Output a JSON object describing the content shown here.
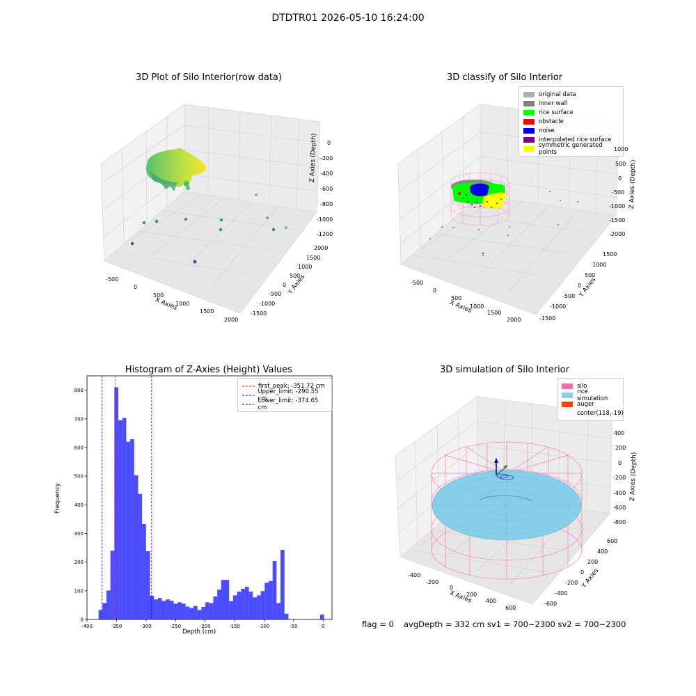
{
  "suptitle": "DTDTR01 2026-05-10 16:24:00",
  "panels": {
    "raw": {
      "title": "3D Plot of Silo Interior(row data)",
      "xlabel": "X Axies",
      "ylabel": "Y Axies",
      "zlabel": "Z Axies (Depth)",
      "xticks": [
        "-500",
        "0",
        "500",
        "1000",
        "1500",
        "2000"
      ],
      "yticks": [
        "2000",
        "1500",
        "1000",
        "500",
        "0",
        "-500",
        "-1000",
        "-1500"
      ],
      "zticks": [
        "0",
        "-200",
        "-400",
        "-600",
        "-800",
        "-1000",
        "-1200"
      ]
    },
    "classify": {
      "title": "3D classify of Silo Interior",
      "xlabel": "X Axies",
      "ylabel": "Y Axies",
      "zlabel": "Z Axies (Depth)",
      "xticks": [
        "-500",
        "0",
        "500",
        "1000",
        "1500",
        "2000"
      ],
      "yticks": [
        "1500",
        "1000",
        "500",
        "0",
        "-500",
        "-1000",
        "-1500"
      ],
      "zticks": [
        "1000",
        "500",
        "0",
        "-500",
        "-1000",
        "-1500",
        "-2000"
      ],
      "legend": [
        {
          "label": "original data",
          "color": "#b0b0b0"
        },
        {
          "label": "inner wall",
          "color": "#808080"
        },
        {
          "label": "rice surface",
          "color": "#00ff00"
        },
        {
          "label": "obstacle",
          "color": "#ff0000"
        },
        {
          "label": "noise",
          "color": "#0000ee"
        },
        {
          "label": "interpolated rice surface",
          "color": "#800080"
        },
        {
          "label": "symmetric generated points",
          "color": "#ffff00"
        }
      ]
    },
    "simulation": {
      "title": "3D simulation of Silo Interior",
      "xlabel": "X Axies",
      "ylabel": "Y Axies",
      "zlabel": "Z Axies (Depth)",
      "xticks": [
        "-400",
        "-200",
        "0",
        "200",
        "400",
        "600"
      ],
      "yticks": [
        "600",
        "400",
        "200",
        "0",
        "-200",
        "-400",
        "-600"
      ],
      "zticks": [
        "400",
        "200",
        "0",
        "-200",
        "-400",
        "-600",
        "-800"
      ],
      "legend": [
        {
          "label": "silo",
          "color": "#ff69b4"
        },
        {
          "label": "rice simulation",
          "color": "#87ceeb"
        },
        {
          "label": "auger",
          "color": "#ff4500"
        },
        {
          "label": "center(118,-19)",
          "color": ""
        }
      ]
    }
  },
  "footer": {
    "flag": "flag = 0",
    "avg": "avgDepth = 332 cm  sv1 = 700~2300  sv2 = 700~2300"
  },
  "chart_data": {
    "type": "bar",
    "title": "Histogram of Z-Axies (Height) Values",
    "xlabel": "Depth (cm)",
    "ylabel": "Frequency",
    "xlim": [
      -400,
      15
    ],
    "ylim": [
      0,
      850
    ],
    "xticks": [
      -400,
      -350,
      -300,
      -250,
      -200,
      -150,
      -100,
      -50,
      0
    ],
    "yticks": [
      0,
      100,
      200,
      300,
      400,
      500,
      600,
      700,
      800
    ],
    "bin_width": 6.7,
    "bins": [
      {
        "x": -380.4,
        "y": 33
      },
      {
        "x": -373.7,
        "y": 57
      },
      {
        "x": -367.0,
        "y": 101
      },
      {
        "x": -360.3,
        "y": 240
      },
      {
        "x": -353.6,
        "y": 810
      },
      {
        "x": -346.9,
        "y": 695
      },
      {
        "x": -340.2,
        "y": 703
      },
      {
        "x": -333.5,
        "y": 620
      },
      {
        "x": -326.8,
        "y": 629
      },
      {
        "x": -320.1,
        "y": 503
      },
      {
        "x": -313.4,
        "y": 438
      },
      {
        "x": -306.7,
        "y": 333
      },
      {
        "x": -300.0,
        "y": 238
      },
      {
        "x": -293.3,
        "y": 83
      },
      {
        "x": -286.6,
        "y": 70
      },
      {
        "x": -279.9,
        "y": 75
      },
      {
        "x": -273.2,
        "y": 65
      },
      {
        "x": -266.5,
        "y": 70
      },
      {
        "x": -259.8,
        "y": 65
      },
      {
        "x": -253.1,
        "y": 55
      },
      {
        "x": -246.4,
        "y": 60
      },
      {
        "x": -239.7,
        "y": 55
      },
      {
        "x": -233.0,
        "y": 45
      },
      {
        "x": -226.3,
        "y": 40
      },
      {
        "x": -219.6,
        "y": 47
      },
      {
        "x": -212.9,
        "y": 33
      },
      {
        "x": -206.2,
        "y": 44
      },
      {
        "x": -199.5,
        "y": 60
      },
      {
        "x": -192.8,
        "y": 57
      },
      {
        "x": -186.1,
        "y": 80
      },
      {
        "x": -179.4,
        "y": 104
      },
      {
        "x": -172.7,
        "y": 138
      },
      {
        "x": -166.0,
        "y": 138
      },
      {
        "x": -159.3,
        "y": 64
      },
      {
        "x": -152.6,
        "y": 84
      },
      {
        "x": -145.9,
        "y": 97
      },
      {
        "x": -139.2,
        "y": 107
      },
      {
        "x": -132.5,
        "y": 114
      },
      {
        "x": -125.8,
        "y": 97
      },
      {
        "x": -119.1,
        "y": 77
      },
      {
        "x": -112.4,
        "y": 84
      },
      {
        "x": -105.7,
        "y": 99
      },
      {
        "x": -99.0,
        "y": 128
      },
      {
        "x": -92.3,
        "y": 134
      },
      {
        "x": -85.6,
        "y": 204
      },
      {
        "x": -78.9,
        "y": 57
      },
      {
        "x": -72.2,
        "y": 243
      },
      {
        "x": -65.5,
        "y": 20
      },
      {
        "x": -58.8,
        "y": 0
      },
      {
        "x": -52.1,
        "y": 0
      },
      {
        "x": -45.4,
        "y": 0
      },
      {
        "x": -38.7,
        "y": 0
      },
      {
        "x": -32.0,
        "y": 0
      },
      {
        "x": -25.3,
        "y": 0
      },
      {
        "x": -18.6,
        "y": 0
      },
      {
        "x": -11.9,
        "y": 0
      },
      {
        "x": -5.2,
        "y": 17
      }
    ],
    "series": [
      {
        "name": "first_peak: -351.72 cm",
        "x": -351.72,
        "color": "#ff0000"
      },
      {
        "name": "Upper_limit: -290.55 cm",
        "x": -290.55,
        "color": "#0000ff"
      },
      {
        "name": "Lower_limit: -374.65 cm",
        "x": -374.65,
        "color": "#0000ff"
      }
    ],
    "bar_color": "#0000ff",
    "legend_position": "top-right",
    "grid": false
  }
}
